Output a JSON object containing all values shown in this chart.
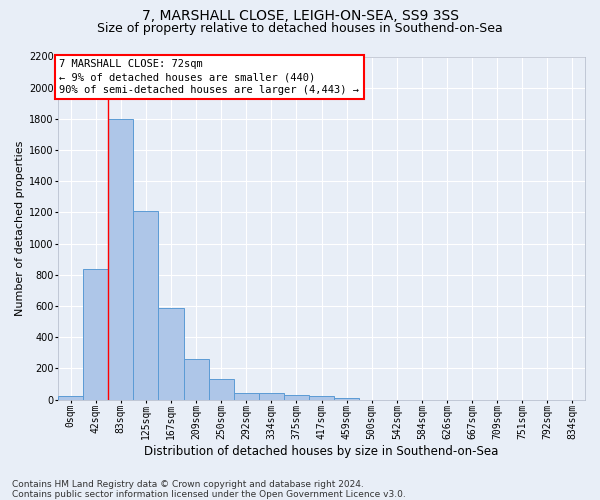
{
  "title_line1": "7, MARSHALL CLOSE, LEIGH-ON-SEA, SS9 3SS",
  "title_line2": "Size of property relative to detached houses in Southend-on-Sea",
  "xlabel": "Distribution of detached houses by size in Southend-on-Sea",
  "ylabel": "Number of detached properties",
  "footnote": "Contains HM Land Registry data © Crown copyright and database right 2024.\nContains public sector information licensed under the Open Government Licence v3.0.",
  "bar_labels": [
    "0sqm",
    "42sqm",
    "83sqm",
    "125sqm",
    "167sqm",
    "209sqm",
    "250sqm",
    "292sqm",
    "334sqm",
    "375sqm",
    "417sqm",
    "459sqm",
    "500sqm",
    "542sqm",
    "584sqm",
    "626sqm",
    "667sqm",
    "709sqm",
    "751sqm",
    "792sqm",
    "834sqm"
  ],
  "bar_values": [
    25,
    840,
    1800,
    1210,
    590,
    260,
    130,
    45,
    45,
    30,
    20,
    10,
    0,
    0,
    0,
    0,
    0,
    0,
    0,
    0,
    0
  ],
  "bar_color": "#aec6e8",
  "bar_edgecolor": "#5b9bd5",
  "ylim_max": 2200,
  "yticks": [
    0,
    200,
    400,
    600,
    800,
    1000,
    1200,
    1400,
    1600,
    1800,
    2000,
    2200
  ],
  "vline_x": 1.5,
  "vline_color": "red",
  "annotation_text": "7 MARSHALL CLOSE: 72sqm\n← 9% of detached houses are smaller (440)\n90% of semi-detached houses are larger (4,443) →",
  "background_color": "#e8eef7",
  "grid_color": "#ffffff",
  "title_fontsize": 10,
  "subtitle_fontsize": 9,
  "ylabel_fontsize": 8,
  "xlabel_fontsize": 8.5,
  "tick_fontsize": 7,
  "annotation_fontsize": 7.5,
  "footnote_fontsize": 6.5
}
